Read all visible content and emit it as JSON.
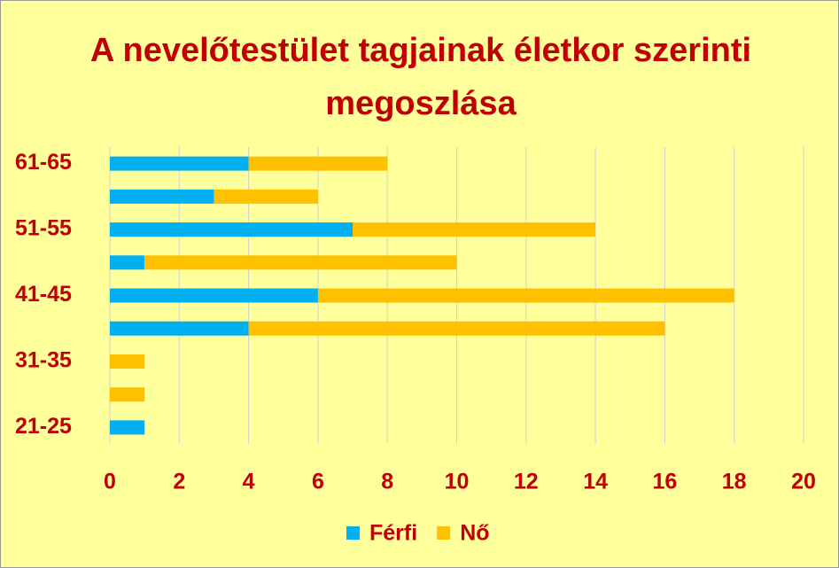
{
  "chart_data": {
    "type": "stacked-bar-horizontal",
    "title": "A nevelőtestület tagjainak életkor szerinti megoszlása",
    "categories": [
      "21-25",
      null,
      "31-35",
      null,
      "41-45",
      null,
      "51-55",
      null,
      "61-65"
    ],
    "series": [
      {
        "name": "Férfi",
        "color": "#00b0f0",
        "values": [
          1,
          0,
          0,
          4,
          6,
          1,
          7,
          3,
          4
        ]
      },
      {
        "name": "Nő",
        "color": "#ffc000",
        "values": [
          0,
          1,
          1,
          12,
          12,
          9,
          7,
          3,
          4
        ]
      }
    ],
    "xlim": [
      0,
      20
    ],
    "xticks": [
      0,
      2,
      4,
      6,
      8,
      10,
      12,
      14,
      16,
      18,
      20
    ],
    "grid": true,
    "legend": "bottom"
  }
}
